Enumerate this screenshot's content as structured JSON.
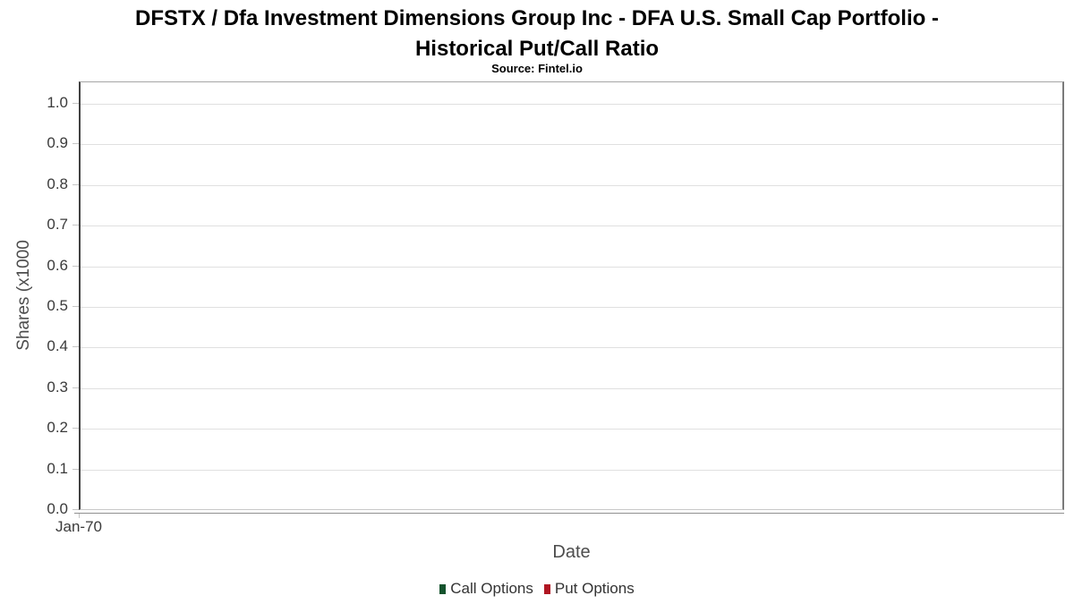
{
  "chart": {
    "title_line1": "DFSTX / Dfa Investment Dimensions Group Inc - DFA U.S. Small Cap Portfolio -",
    "title_line2": "Historical Put/Call Ratio",
    "subtitle": "Source: Fintel.io",
    "y_axis": {
      "label": "Shares (x1000",
      "ticks": [
        "0.0",
        "0.1",
        "0.2",
        "0.3",
        "0.4",
        "0.5",
        "0.6",
        "0.7",
        "0.8",
        "0.9",
        "1.0"
      ]
    },
    "x_axis": {
      "label": "Date",
      "ticks": [
        "Jan-70"
      ]
    },
    "legend": [
      {
        "label": "Call Options",
        "color": "#14532d"
      },
      {
        "label": "Put Options",
        "color": "#b01622"
      }
    ]
  },
  "chart_data": {
    "type": "line",
    "title": "DFSTX / Dfa Investment Dimensions Group Inc - DFA U.S. Small Cap Portfolio - Historical Put/Call Ratio",
    "subtitle": "Source: Fintel.io",
    "xlabel": "Date",
    "ylabel": "Shares (x1000",
    "ylim": [
      0.0,
      1.0
    ],
    "y_ticks": [
      0.0,
      0.1,
      0.2,
      0.3,
      0.4,
      0.5,
      0.6,
      0.7,
      0.8,
      0.9,
      1.0
    ],
    "x_ticks": [
      "Jan-70"
    ],
    "grid": true,
    "legend_position": "bottom",
    "series": [
      {
        "name": "Call Options",
        "color": "#14532d",
        "x": [],
        "values": []
      },
      {
        "name": "Put Options",
        "color": "#b01622",
        "x": [],
        "values": []
      }
    ]
  }
}
